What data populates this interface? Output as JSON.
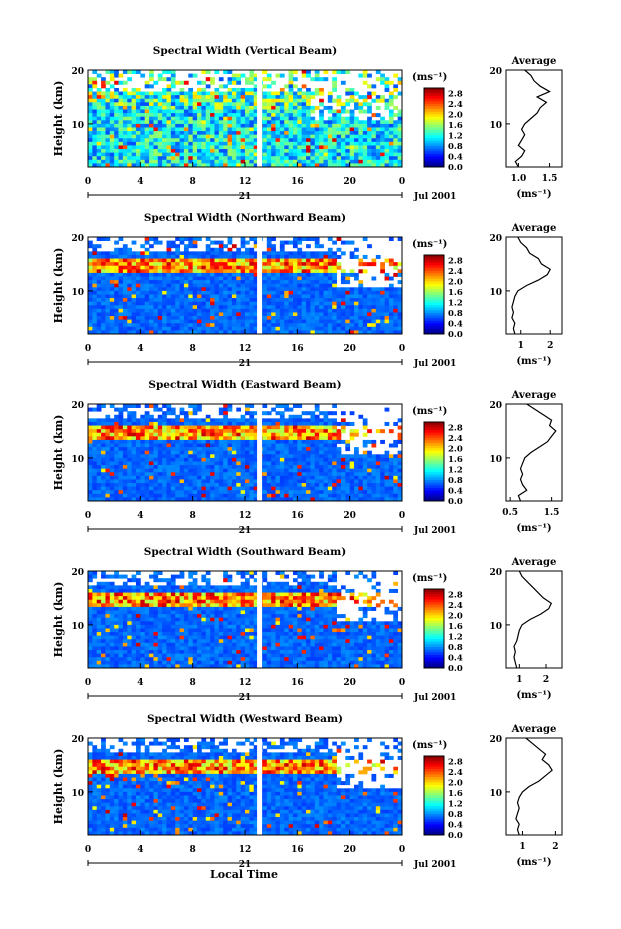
{
  "figure": {
    "ylabel": "Height (km)",
    "xlabel": "Local Time",
    "unit_label": "(ms⁻¹)",
    "avg_title": "Average",
    "day_label": "21",
    "date_label": "Jul 2001"
  },
  "chart_data": [
    {
      "type": "heatmap",
      "title": "Spectral Width (Vertical Beam)",
      "ylabel": "Height (km)",
      "x_ticks": [
        "0",
        "4",
        "8",
        "12",
        "16",
        "20",
        "0"
      ],
      "y_ticks": [
        "20",
        "10"
      ],
      "xlim": [
        0,
        24
      ],
      "ylim": [
        2,
        20
      ],
      "colorbar": {
        "ticks": [
          "2.8",
          "2.4",
          "2.0",
          "1.6",
          "1.2",
          "0.8",
          "0.4",
          "0.0"
        ],
        "range": [
          0,
          3.0
        ]
      },
      "profile": {
        "title": "Average",
        "x_ticks": [
          "1.0",
          "1.5"
        ],
        "xlim": [
          0.8,
          1.7
        ],
        "heights": [
          2,
          3,
          4,
          5,
          6,
          7,
          8,
          9,
          10,
          11,
          12,
          13,
          14,
          15,
          16,
          17,
          18,
          19,
          20
        ],
        "values": [
          1.0,
          0.95,
          1.05,
          1.1,
          1.0,
          1.05,
          1.1,
          1.05,
          1.1,
          1.2,
          1.3,
          1.35,
          1.45,
          1.3,
          1.5,
          1.35,
          1.25,
          1.2,
          1.1
        ]
      }
    },
    {
      "type": "heatmap",
      "title": "Spectral Width (Northward Beam)",
      "ylabel": "Height (km)",
      "x_ticks": [
        "0",
        "4",
        "8",
        "12",
        "16",
        "20",
        "0"
      ],
      "y_ticks": [
        "20",
        "10"
      ],
      "xlim": [
        0,
        24
      ],
      "ylim": [
        2,
        20
      ],
      "colorbar": {
        "ticks": [
          "2.8",
          "2.4",
          "2.0",
          "1.6",
          "1.2",
          "0.8",
          "0.4",
          "0.0"
        ],
        "range": [
          0,
          3.0
        ]
      },
      "profile": {
        "title": "Average",
        "x_ticks": [
          "1",
          "2"
        ],
        "xlim": [
          0.5,
          2.4
        ],
        "heights": [
          2,
          3,
          4,
          5,
          6,
          7,
          8,
          9,
          10,
          11,
          12,
          13,
          14,
          15,
          16,
          17,
          18,
          19,
          20
        ],
        "values": [
          0.8,
          0.75,
          0.8,
          0.7,
          0.75,
          0.7,
          0.75,
          0.8,
          0.9,
          1.2,
          1.6,
          1.9,
          2.0,
          1.7,
          1.6,
          1.3,
          1.2,
          1.0,
          0.9
        ]
      }
    },
    {
      "type": "heatmap",
      "title": "Spectral Width (Eastward Beam)",
      "ylabel": "Height (km)",
      "x_ticks": [
        "0",
        "4",
        "8",
        "12",
        "16",
        "20",
        "0"
      ],
      "y_ticks": [
        "20",
        "10"
      ],
      "xlim": [
        0,
        24
      ],
      "ylim": [
        2,
        20
      ],
      "colorbar": {
        "ticks": [
          "2.8",
          "2.4",
          "2.0",
          "1.6",
          "1.2",
          "0.8",
          "0.4",
          "0.0"
        ],
        "range": [
          0,
          3.0
        ]
      },
      "profile": {
        "title": "Average",
        "x_ticks": [
          "0.5",
          "1.5"
        ],
        "xlim": [
          0.4,
          1.75
        ],
        "heights": [
          2,
          3,
          4,
          5,
          6,
          7,
          8,
          9,
          10,
          11,
          12,
          13,
          14,
          15,
          16,
          17,
          18,
          19,
          20
        ],
        "values": [
          0.75,
          0.7,
          0.9,
          0.8,
          0.75,
          0.8,
          0.75,
          0.8,
          0.85,
          1.0,
          1.2,
          1.4,
          1.5,
          1.6,
          1.45,
          1.5,
          1.3,
          1.1,
          0.9
        ]
      }
    },
    {
      "type": "heatmap",
      "title": "Spectral Width (Southward Beam)",
      "ylabel": "Height (km)",
      "x_ticks": [
        "0",
        "4",
        "8",
        "12",
        "16",
        "20",
        "0"
      ],
      "y_ticks": [
        "20",
        "10"
      ],
      "xlim": [
        0,
        24
      ],
      "ylim": [
        2,
        20
      ],
      "colorbar": {
        "ticks": [
          "2.8",
          "2.4",
          "2.0",
          "1.6",
          "1.2",
          "0.8",
          "0.4",
          "0.0"
        ],
        "range": [
          0,
          3.0
        ]
      },
      "profile": {
        "title": "Average",
        "x_ticks": [
          "1",
          "2"
        ],
        "xlim": [
          0.5,
          2.6
        ],
        "heights": [
          2,
          3,
          4,
          5,
          6,
          7,
          8,
          9,
          10,
          11,
          12,
          13,
          14,
          15,
          16,
          17,
          18,
          19,
          20
        ],
        "values": [
          0.9,
          0.85,
          0.8,
          0.85,
          0.8,
          0.9,
          0.95,
          1.0,
          1.1,
          1.4,
          1.8,
          2.1,
          2.2,
          1.9,
          1.7,
          1.5,
          1.3,
          1.1,
          1.0
        ]
      }
    },
    {
      "type": "heatmap",
      "title": "Spectral Width (Westward Beam)",
      "ylabel": "Height (km)",
      "x_ticks": [
        "0",
        "4",
        "8",
        "12",
        "16",
        "20",
        "0"
      ],
      "y_ticks": [
        "20",
        "10"
      ],
      "xlim": [
        0,
        24
      ],
      "ylim": [
        2,
        20
      ],
      "colorbar": {
        "ticks": [
          "2.8",
          "2.4",
          "2.0",
          "1.6",
          "1.2",
          "0.8",
          "0.4",
          "0.0"
        ],
        "range": [
          0,
          3.0
        ]
      },
      "profile": {
        "title": "Average",
        "x_ticks": [
          "1",
          "2"
        ],
        "xlim": [
          0.5,
          2.2
        ],
        "heights": [
          2,
          3,
          4,
          5,
          6,
          7,
          8,
          9,
          10,
          11,
          12,
          13,
          14,
          15,
          16,
          17,
          18,
          19,
          20
        ],
        "values": [
          0.9,
          0.85,
          0.9,
          0.8,
          0.85,
          0.9,
          0.85,
          0.9,
          1.0,
          1.2,
          1.5,
          1.7,
          1.9,
          1.8,
          1.6,
          1.7,
          1.5,
          1.3,
          1.1
        ]
      }
    }
  ]
}
